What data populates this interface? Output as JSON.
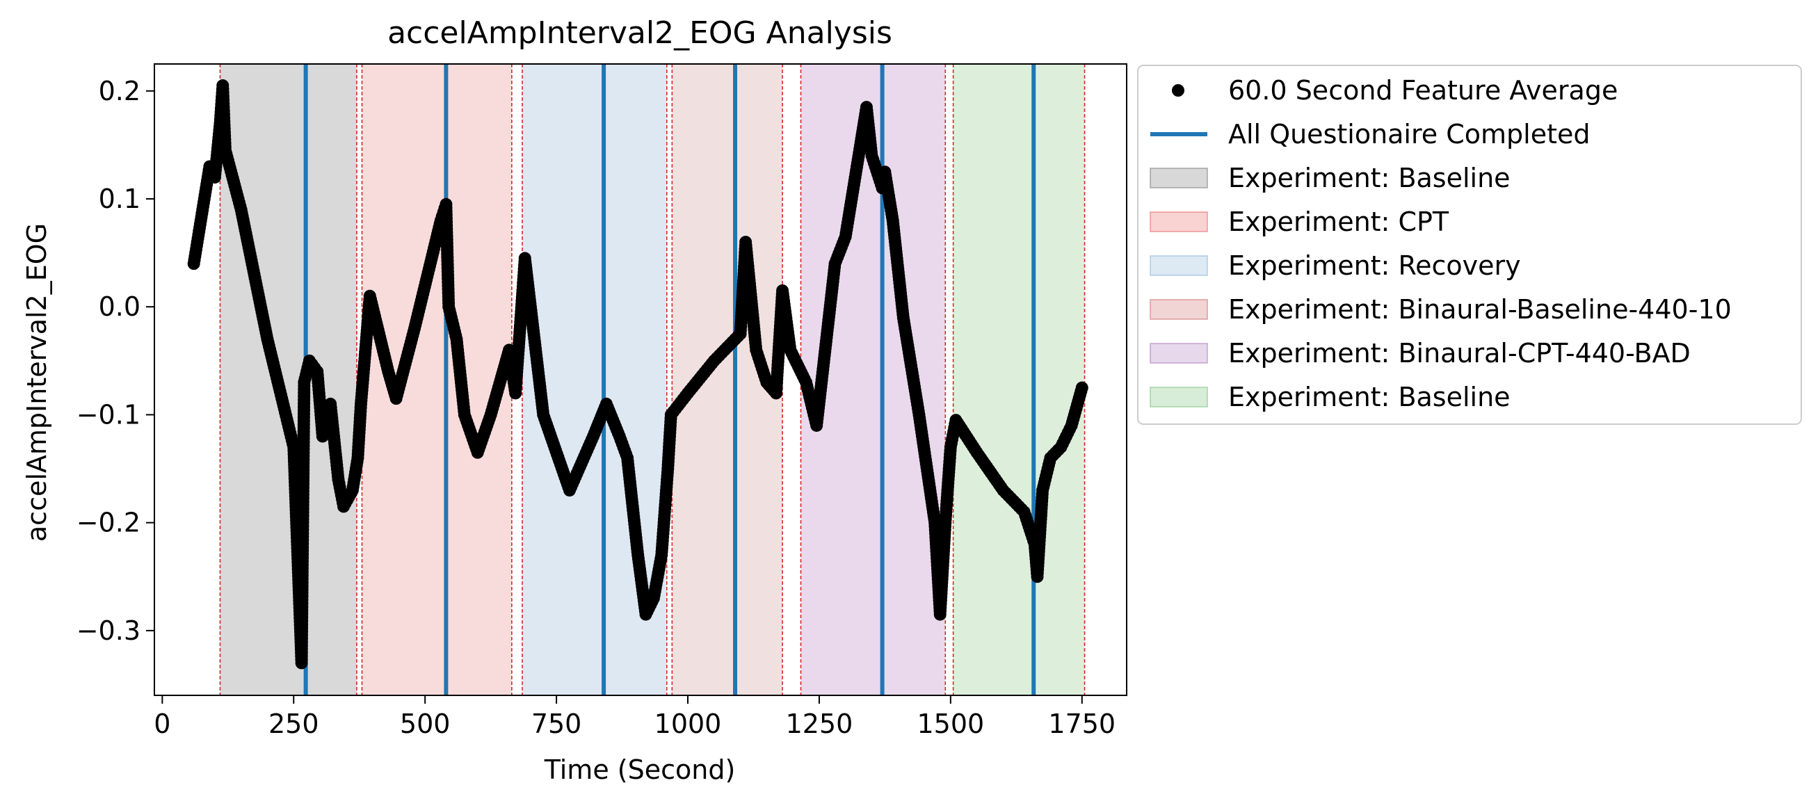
{
  "chart_data": {
    "type": "scatter",
    "title": "accelAmpInterval2_EOG Analysis",
    "xlabel": "Time (Second)",
    "ylabel": "accelAmpInterval2_EOG",
    "xlim": [
      -15,
      1835
    ],
    "ylim": [
      -0.36,
      0.225
    ],
    "xticks": [
      0,
      250,
      500,
      750,
      1000,
      1250,
      1500,
      1750
    ],
    "xtick_labels": [
      "0",
      "250",
      "500",
      "750",
      "1000",
      "1250",
      "1500",
      "1750"
    ],
    "yticks": [
      0.2,
      0.1,
      0.0,
      -0.1,
      -0.2,
      -0.3
    ],
    "ytick_labels": [
      "0.2",
      "0.1",
      "0.0",
      "−0.1",
      "−0.2",
      "−0.3"
    ],
    "grid": false,
    "legend_position": "outside-right-top",
    "legend": [
      {
        "label": "60.0 Second Feature Average",
        "kind": "marker",
        "color": "#000000"
      },
      {
        "label": "All Questionaire Completed",
        "kind": "line",
        "color": "#1f77b4"
      },
      {
        "label": "Experiment: Baseline",
        "kind": "patch",
        "color": "#7f7f7f"
      },
      {
        "label": "Experiment: CPT",
        "kind": "patch",
        "color": "#ec6a6a"
      },
      {
        "label": "Experiment: Recovery",
        "kind": "patch",
        "color": "#90b8dc"
      },
      {
        "label": "Experiment: Binaural-Baseline-440-10",
        "kind": "patch",
        "color": "#d27373"
      },
      {
        "label": "Experiment: Binaural-CPT-440-BAD",
        "kind": "patch",
        "color": "#b07ec0"
      },
      {
        "label": "Experiment: Baseline",
        "kind": "patch",
        "color": "#7fc47f"
      }
    ],
    "regions": [
      {
        "label": "Experiment: Baseline",
        "start": 110,
        "end": 370,
        "color": "#d9d9d9"
      },
      {
        "label": "Experiment: CPT",
        "start": 380,
        "end": 665,
        "color": "#f8dcdc"
      },
      {
        "label": "Experiment: Recovery",
        "start": 685,
        "end": 960,
        "color": "#dde8f3"
      },
      {
        "label": "Experiment: Binaural-Baseline-440-10",
        "start": 970,
        "end": 1180,
        "color": "#f1e0e0"
      },
      {
        "label": "Experiment: Binaural-CPT-440-BAD",
        "start": 1215,
        "end": 1490,
        "color": "#ead9ec"
      },
      {
        "label": "Experiment: Baseline",
        "start": 1505,
        "end": 1755,
        "color": "#ddefdb"
      }
    ],
    "boundary_lines": [
      110,
      370,
      380,
      665,
      685,
      960,
      970,
      1180,
      1215,
      1490,
      1505,
      1755
    ],
    "questionnaire_lines": [
      273,
      540,
      840,
      1090,
      1370,
      1658
    ],
    "series": [
      {
        "name": "60.0 Second Feature Average",
        "color": "#000000",
        "points": [
          [
            60,
            0.04
          ],
          [
            70,
            0.07
          ],
          [
            80,
            0.1
          ],
          [
            90,
            0.13
          ],
          [
            100,
            0.12
          ],
          [
            110,
            0.17
          ],
          [
            115,
            0.205
          ],
          [
            120,
            0.145
          ],
          [
            150,
            0.09
          ],
          [
            200,
            -0.03
          ],
          [
            250,
            -0.13
          ],
          [
            265,
            -0.33
          ],
          [
            270,
            -0.07
          ],
          [
            280,
            -0.05
          ],
          [
            295,
            -0.06
          ],
          [
            305,
            -0.12
          ],
          [
            320,
            -0.09
          ],
          [
            335,
            -0.16
          ],
          [
            345,
            -0.185
          ],
          [
            362,
            -0.17
          ],
          [
            372,
            -0.14
          ],
          [
            378,
            -0.09
          ],
          [
            395,
            0.01
          ],
          [
            430,
            -0.06
          ],
          [
            445,
            -0.085
          ],
          [
            480,
            -0.02
          ],
          [
            530,
            0.08
          ],
          [
            540,
            0.095
          ],
          [
            545,
            0.0
          ],
          [
            560,
            -0.03
          ],
          [
            575,
            -0.1
          ],
          [
            600,
            -0.135
          ],
          [
            625,
            -0.1
          ],
          [
            660,
            -0.04
          ],
          [
            672,
            -0.08
          ],
          [
            690,
            0.045
          ],
          [
            725,
            -0.1
          ],
          [
            775,
            -0.17
          ],
          [
            820,
            -0.12
          ],
          [
            845,
            -0.09
          ],
          [
            870,
            -0.12
          ],
          [
            885,
            -0.14
          ],
          [
            905,
            -0.23
          ],
          [
            920,
            -0.285
          ],
          [
            935,
            -0.27
          ],
          [
            950,
            -0.23
          ],
          [
            962,
            -0.15
          ],
          [
            968,
            -0.1
          ],
          [
            1000,
            -0.08
          ],
          [
            1050,
            -0.05
          ],
          [
            1100,
            -0.025
          ],
          [
            1110,
            0.06
          ],
          [
            1130,
            -0.04
          ],
          [
            1150,
            -0.07
          ],
          [
            1168,
            -0.08
          ],
          [
            1180,
            0.015
          ],
          [
            1195,
            -0.04
          ],
          [
            1225,
            -0.07
          ],
          [
            1245,
            -0.11
          ],
          [
            1280,
            0.04
          ],
          [
            1300,
            0.065
          ],
          [
            1315,
            0.11
          ],
          [
            1340,
            0.185
          ],
          [
            1350,
            0.14
          ],
          [
            1370,
            0.11
          ],
          [
            1375,
            0.125
          ],
          [
            1390,
            0.08
          ],
          [
            1410,
            -0.01
          ],
          [
            1440,
            -0.1
          ],
          [
            1470,
            -0.2
          ],
          [
            1480,
            -0.285
          ],
          [
            1490,
            -0.2
          ],
          [
            1500,
            -0.13
          ],
          [
            1510,
            -0.105
          ],
          [
            1550,
            -0.135
          ],
          [
            1600,
            -0.17
          ],
          [
            1640,
            -0.19
          ],
          [
            1660,
            -0.22
          ],
          [
            1665,
            -0.25
          ],
          [
            1675,
            -0.17
          ],
          [
            1690,
            -0.14
          ],
          [
            1710,
            -0.13
          ],
          [
            1730,
            -0.11
          ],
          [
            1750,
            -0.075
          ]
        ]
      }
    ]
  }
}
